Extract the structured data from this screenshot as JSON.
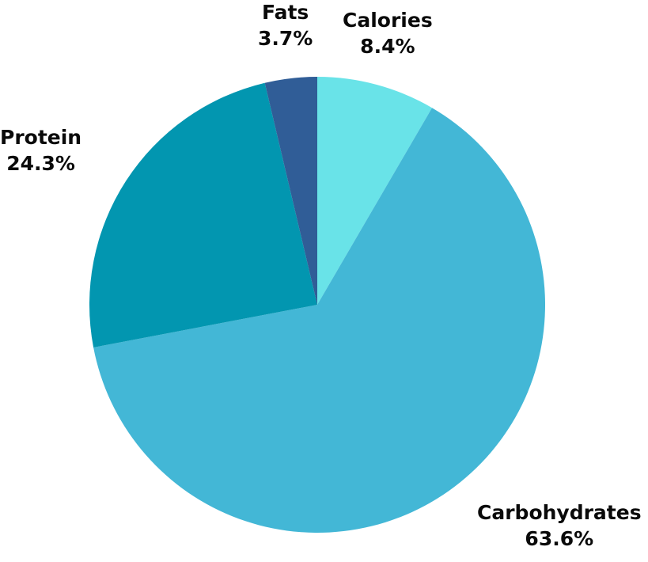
{
  "chart_data": {
    "type": "pie",
    "title": "",
    "start_angle_deg": 0,
    "direction": "clockwise",
    "slices": [
      {
        "label": "Calories",
        "value": 8.4,
        "display": "8.4%",
        "color": "#69E3E8"
      },
      {
        "label": "Carbohydrates",
        "value": 63.6,
        "display": "63.6%",
        "color": "#43B7D6"
      },
      {
        "label": "Protein",
        "value": 24.3,
        "display": "24.3%",
        "color": "#0296B0"
      },
      {
        "label": "Fats",
        "value": 3.7,
        "display": "3.7%",
        "color": "#305D97"
      }
    ]
  }
}
